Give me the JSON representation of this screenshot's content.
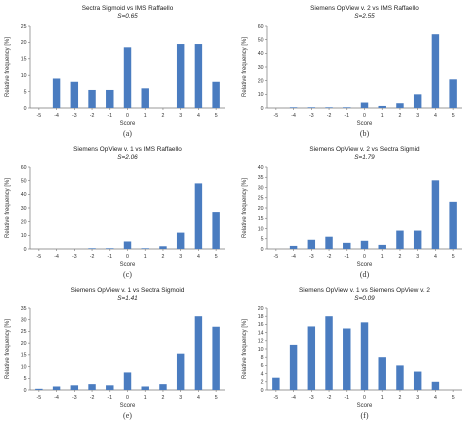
{
  "page": {
    "domain": "Chart"
  },
  "chart_data": [
    {
      "type": "bar",
      "title": "Sectra Sigmoid vs IMS Raffaello",
      "stat": "S=0.65",
      "caption": "(a)",
      "xlabel": "Score",
      "ylabel": "Relative frequency [%]",
      "categories": [
        "-5",
        "-4",
        "-3",
        "-2",
        "-1",
        "0",
        "1",
        "2",
        "3",
        "4",
        "5"
      ],
      "values": [
        0,
        9,
        8,
        5.5,
        5.5,
        18.5,
        6,
        0,
        19.5,
        19.5,
        8
      ],
      "ylim": [
        0,
        25
      ],
      "yticks": [
        "0",
        "5",
        "10",
        "15",
        "20",
        "25"
      ],
      "color": "#4a7cc0"
    },
    {
      "type": "bar",
      "title": "Siemens OpView v. 2 vs IMS Raffaello",
      "stat": "S=2.55",
      "caption": "(b)",
      "xlabel": "Score",
      "ylabel": "Relative frequency [%]",
      "categories": [
        "-5",
        "-4",
        "-3",
        "-2",
        "-1",
        "0",
        "1",
        "2",
        "3",
        "4",
        "5"
      ],
      "values": [
        0,
        0.5,
        0.5,
        0.5,
        0.5,
        4,
        1.5,
        3.5,
        10,
        54,
        21
      ],
      "ylim": [
        0,
        60
      ],
      "yticks": [
        "0",
        "10",
        "20",
        "30",
        "40",
        "50",
        "60"
      ],
      "color": "#4a7cc0"
    },
    {
      "type": "bar",
      "title": "Siemens OpView v. 1 vs IMS Raffaello",
      "stat": "S=2.06",
      "caption": "(c)",
      "xlabel": "Score",
      "ylabel": "Relative frequency [%]",
      "categories": [
        "-5",
        "-4",
        "-3",
        "-2",
        "-1",
        "0",
        "1",
        "2",
        "3",
        "4",
        "5"
      ],
      "values": [
        0,
        0,
        0,
        0.5,
        0.5,
        5.5,
        0.5,
        2,
        12,
        48,
        27
      ],
      "ylim": [
        0,
        60
      ],
      "yticks": [
        "0",
        "10",
        "20",
        "30",
        "40",
        "50",
        "60"
      ],
      "color": "#4a7cc0"
    },
    {
      "type": "bar",
      "title": "Siemens OpView v. 2 vs Sectra Sigmid",
      "stat": "S=1.79",
      "caption": "(d)",
      "xlabel": "Score",
      "ylabel": "Relative frequency [%]",
      "categories": [
        "-5",
        "-4",
        "-3",
        "-2",
        "-1",
        "0",
        "1",
        "2",
        "3",
        "4",
        "5"
      ],
      "values": [
        0,
        1.5,
        4.5,
        6,
        3,
        4,
        2,
        9,
        9,
        33.5,
        23
      ],
      "ylim": [
        0,
        40
      ],
      "yticks": [
        "0",
        "5",
        "10",
        "15",
        "20",
        "25",
        "30",
        "35",
        "40"
      ],
      "color": "#4a7cc0"
    },
    {
      "type": "bar",
      "title": "Siemens OpView v. 1 vs Sectra Sigmoid",
      "stat": "S=1.41",
      "caption": "(e)",
      "xlabel": "Score",
      "ylabel": "Relative frequency [%]",
      "categories": [
        "-5",
        "-4",
        "-3",
        "-2",
        "-1",
        "0",
        "1",
        "2",
        "3",
        "4",
        "5"
      ],
      "values": [
        0.5,
        1.5,
        2,
        2.5,
        2,
        7.5,
        1.5,
        2.5,
        15.5,
        31.5,
        27
      ],
      "ylim": [
        0,
        35
      ],
      "yticks": [
        "0",
        "5",
        "10",
        "15",
        "20",
        "25",
        "30",
        "35"
      ],
      "color": "#4a7cc0"
    },
    {
      "type": "bar",
      "title": "Siemens OpView v. 1 vs Siemens OpView v. 2",
      "stat": "S=0.09",
      "caption": "(f)",
      "xlabel": "Score",
      "ylabel": "Relative frequency [%]",
      "categories": [
        "-5",
        "-4",
        "-3",
        "-2",
        "-1",
        "0",
        "1",
        "2",
        "3",
        "4",
        "5"
      ],
      "values": [
        3,
        11,
        15.5,
        18,
        15,
        16.5,
        8,
        6,
        4.5,
        2,
        0
      ],
      "ylim": [
        0,
        20
      ],
      "yticks": [
        "0",
        "2",
        "4",
        "6",
        "8",
        "10",
        "12",
        "14",
        "16",
        "18",
        "20"
      ],
      "color": "#4a7cc0"
    }
  ]
}
